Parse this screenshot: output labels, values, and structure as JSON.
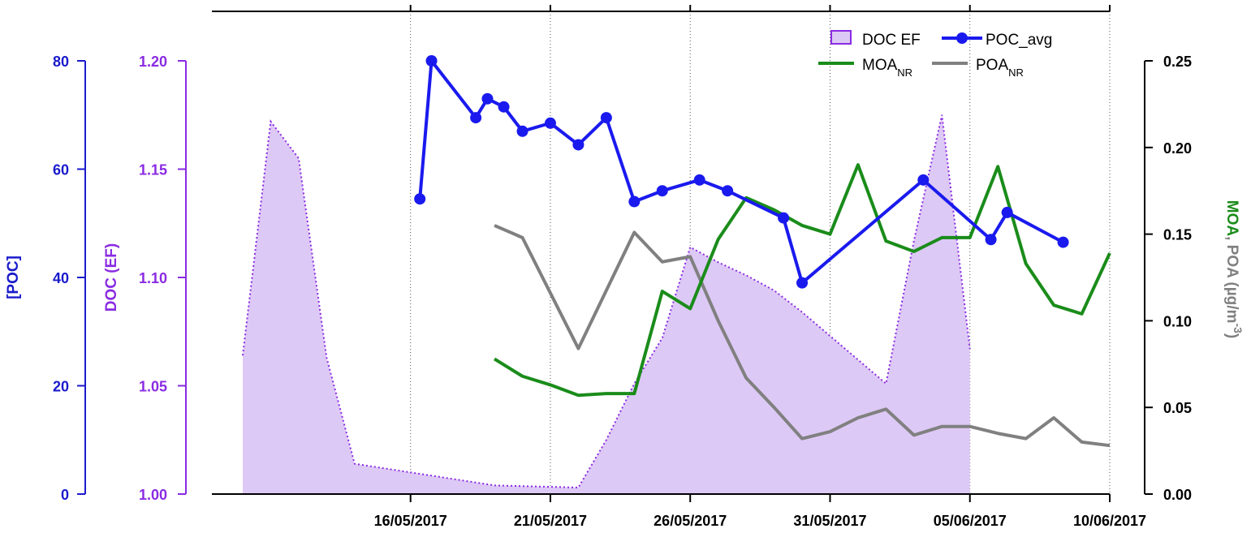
{
  "chart_data": {
    "type": "line",
    "x_axis": {
      "type": "date",
      "range": [
        "2017-05-10",
        "2017-06-10"
      ],
      "ticks": [
        "2017-05-16",
        "2017-05-21",
        "2017-05-26",
        "2017-05-31",
        "2017-06-05",
        "2017-06-10"
      ],
      "tick_labels": [
        "16/05/2017",
        "21/05/2017",
        "26/05/2017",
        "31/05/2017",
        "05/06/2017",
        "10/06/2017"
      ],
      "grid": "dotted vertical"
    },
    "y_axes": {
      "poc": {
        "label": "[POC]",
        "range": [
          0,
          80
        ],
        "ticks": [
          0,
          20,
          40,
          60,
          80
        ],
        "tick_labels": [
          "0",
          "20",
          "40",
          "60",
          "80"
        ],
        "color": "#1a1acc",
        "side": "left-outer"
      },
      "ef": {
        "label": "DOC (EF)",
        "range": [
          1.0,
          1.2
        ],
        "ticks": [
          1.0,
          1.05,
          1.1,
          1.15,
          1.2
        ],
        "tick_labels": [
          "1.00",
          "1.05",
          "1.10",
          "1.15",
          "1.20"
        ],
        "color": "#8a2be2",
        "side": "left-inner"
      },
      "oa": {
        "label_parts": [
          {
            "text": "MOA",
            "color": "#1a8c1a"
          },
          {
            "text": ", POA (µg/m",
            "color": "#808080"
          },
          {
            "text": "-3",
            "color": "#808080",
            "sup": true
          },
          {
            "text": ")",
            "color": "#808080"
          }
        ],
        "range": [
          0,
          0.25
        ],
        "ticks": [
          0,
          0.05,
          0.1,
          0.15,
          0.2,
          0.25
        ],
        "tick_labels": [
          "0.00",
          "0.05",
          "0.10",
          "0.15",
          "0.20",
          "0.25"
        ],
        "color": "#000000",
        "side": "right"
      }
    },
    "series": [
      {
        "name": "DOC EF",
        "type": "area",
        "axis": "ef",
        "fill": "#ddc9f5",
        "stroke": "#8a2be2",
        "points": [
          [
            "2017-05-10T00:00",
            1.064
          ],
          [
            "2017-05-11T00:00",
            1.172
          ],
          [
            "2017-05-12T00:00",
            1.155
          ],
          [
            "2017-05-13T00:00",
            1.063
          ],
          [
            "2017-05-14T00:00",
            1.014
          ],
          [
            "2017-05-15T00:00",
            1.012
          ],
          [
            "2017-05-16T00:00",
            1.01
          ],
          [
            "2017-05-17T00:00",
            1.008
          ],
          [
            "2017-05-18T00:00",
            1.006
          ],
          [
            "2017-05-19T00:00",
            1.004
          ],
          [
            "2017-05-22T00:00",
            1.003
          ],
          [
            "2017-05-23T00:00",
            1.025
          ],
          [
            "2017-05-24T00:00",
            1.051
          ],
          [
            "2017-05-25T00:00",
            1.072
          ],
          [
            "2017-05-26T00:00",
            1.114
          ],
          [
            "2017-05-27T00:00",
            1.107
          ],
          [
            "2017-05-28T00:00",
            1.101
          ],
          [
            "2017-05-29T00:00",
            1.094
          ],
          [
            "2017-05-30T00:00",
            1.084
          ],
          [
            "2017-05-31T00:00",
            1.073
          ],
          [
            "2017-06-01T00:00",
            1.062
          ],
          [
            "2017-06-02T00:00",
            1.051
          ],
          [
            "2017-06-03T00:00",
            1.117
          ],
          [
            "2017-06-04T00:00",
            1.175
          ],
          [
            "2017-06-05T00:00",
            1.067
          ]
        ]
      },
      {
        "name": "POC_avg",
        "type": "line-markers",
        "axis": "poc",
        "color": "#1a1aee",
        "points": [
          [
            "2017-05-16T08:00",
            54.5
          ],
          [
            "2017-05-16T18:00",
            80.0
          ],
          [
            "2017-05-18T08:00",
            69.5
          ],
          [
            "2017-05-18T18:00",
            73.0
          ],
          [
            "2017-05-19T08:00",
            71.5
          ],
          [
            "2017-05-20T00:00",
            67.0
          ],
          [
            "2017-05-21T00:00",
            68.5
          ],
          [
            "2017-05-22T00:00",
            64.5
          ],
          [
            "2017-05-23T00:00",
            69.5
          ],
          [
            "2017-05-24T00:00",
            54.0
          ],
          [
            "2017-05-25T00:00",
            56.0
          ],
          [
            "2017-05-26T08:00",
            58.0
          ],
          [
            "2017-05-27T08:00",
            56.0
          ],
          [
            "2017-05-29T08:00",
            51.0
          ],
          [
            "2017-05-30T00:00",
            39.0
          ],
          [
            "2017-06-03T08:00",
            58.0
          ],
          [
            "2017-06-05T18:00",
            47.0
          ],
          [
            "2017-06-06T08:00",
            52.0
          ],
          [
            "2017-06-08T08:00",
            46.5
          ]
        ]
      },
      {
        "name": "MOA",
        "name_sub": "NR",
        "type": "line",
        "axis": "oa",
        "color": "#1a8c1a",
        "points": [
          [
            "2017-05-19T00:00",
            0.078
          ],
          [
            "2017-05-20T00:00",
            0.068
          ],
          [
            "2017-05-21T00:00",
            0.063
          ],
          [
            "2017-05-22T00:00",
            0.057
          ],
          [
            "2017-05-23T00:00",
            0.058
          ],
          [
            "2017-05-24T00:00",
            0.058
          ],
          [
            "2017-05-25T00:00",
            0.117
          ],
          [
            "2017-05-26T00:00",
            0.107
          ],
          [
            "2017-05-27T00:00",
            0.147
          ],
          [
            "2017-05-28T00:00",
            0.171
          ],
          [
            "2017-05-29T00:00",
            0.164
          ],
          [
            "2017-05-30T00:00",
            0.155
          ],
          [
            "2017-05-31T00:00",
            0.15
          ],
          [
            "2017-06-01T00:00",
            0.19
          ],
          [
            "2017-06-02T00:00",
            0.146
          ],
          [
            "2017-06-03T00:00",
            0.14
          ],
          [
            "2017-06-04T00:00",
            0.148
          ],
          [
            "2017-06-05T00:00",
            0.148
          ],
          [
            "2017-06-06T00:00",
            0.189
          ],
          [
            "2017-06-07T00:00",
            0.133
          ],
          [
            "2017-06-08T00:00",
            0.109
          ],
          [
            "2017-06-09T00:00",
            0.104
          ],
          [
            "2017-06-10T00:00",
            0.139
          ]
        ]
      },
      {
        "name": "POA",
        "name_sub": "NR",
        "type": "line",
        "axis": "oa",
        "color": "#808080",
        "points": [
          [
            "2017-05-19T00:00",
            0.155
          ],
          [
            "2017-05-20T00:00",
            0.148
          ],
          [
            "2017-05-22T00:00",
            0.084
          ],
          [
            "2017-05-24T00:00",
            0.151
          ],
          [
            "2017-05-25T00:00",
            0.134
          ],
          [
            "2017-05-26T00:00",
            0.137
          ],
          [
            "2017-05-27T00:00",
            0.1
          ],
          [
            "2017-05-28T00:00",
            0.067
          ],
          [
            "2017-05-29T00:00",
            0.05
          ],
          [
            "2017-05-30T00:00",
            0.032
          ],
          [
            "2017-05-31T00:00",
            0.036
          ],
          [
            "2017-06-01T00:00",
            0.044
          ],
          [
            "2017-06-02T00:00",
            0.049
          ],
          [
            "2017-06-03T00:00",
            0.034
          ],
          [
            "2017-06-04T00:00",
            0.039
          ],
          [
            "2017-06-05T00:00",
            0.039
          ],
          [
            "2017-06-06T00:00",
            0.035
          ],
          [
            "2017-06-07T00:00",
            0.032
          ],
          [
            "2017-06-08T00:00",
            0.044
          ],
          [
            "2017-06-09T00:00",
            0.03
          ],
          [
            "2017-06-10T00:00",
            0.028
          ]
        ]
      }
    ],
    "legend": {
      "placement": "top-right",
      "entries": [
        {
          "label": "DOC EF",
          "series": "DOC EF"
        },
        {
          "label": "POC_avg",
          "series": "POC_avg"
        },
        {
          "label": "MOA",
          "sub": "NR",
          "series": "MOA"
        },
        {
          "label": "POA",
          "sub": "NR",
          "series": "POA"
        }
      ]
    }
  }
}
